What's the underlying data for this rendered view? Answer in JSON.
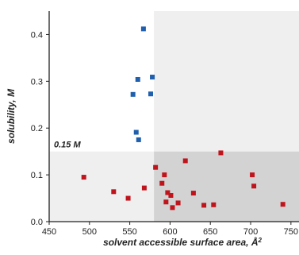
{
  "chart_data": {
    "type": "scatter",
    "xlabel": "solvent accessible surface area, Å",
    "xlabel_superscript": "2",
    "ylabel": "solubility, M",
    "xlim": [
      450,
      760
    ],
    "ylim": [
      0,
      0.45
    ],
    "xticks": [
      450,
      500,
      550,
      600,
      650,
      700,
      750
    ],
    "yticks": [
      0.0,
      0.1,
      0.2,
      0.3,
      0.4
    ],
    "ytick_labels": [
      "0.0",
      "0.1",
      "0.2",
      "0.3",
      "0.4"
    ],
    "threshold": {
      "y": 0.15,
      "x": 580,
      "label": "0.15 M"
    },
    "region_colors": {
      "light": "#efefef",
      "dark": "#d3d3d3"
    },
    "series": [
      {
        "color": "#1f5fad",
        "marker": "square",
        "points": [
          [
            567,
            0.412
          ],
          [
            560,
            0.304
          ],
          [
            578,
            0.309
          ],
          [
            554,
            0.272
          ],
          [
            576,
            0.273
          ],
          [
            558,
            0.191
          ],
          [
            561,
            0.175
          ]
        ]
      },
      {
        "color": "#c0141c",
        "marker": "square",
        "points": [
          [
            493,
            0.095
          ],
          [
            530,
            0.064
          ],
          [
            548,
            0.05
          ],
          [
            568,
            0.072
          ],
          [
            582,
            0.116
          ],
          [
            590,
            0.082
          ],
          [
            593,
            0.1
          ],
          [
            595,
            0.042
          ],
          [
            597,
            0.062
          ],
          [
            601,
            0.056
          ],
          [
            603,
            0.03
          ],
          [
            610,
            0.04
          ],
          [
            619,
            0.13
          ],
          [
            629,
            0.061
          ],
          [
            642,
            0.035
          ],
          [
            654,
            0.036
          ],
          [
            663,
            0.147
          ],
          [
            702,
            0.1
          ],
          [
            704,
            0.076
          ],
          [
            740,
            0.037
          ]
        ]
      }
    ]
  }
}
